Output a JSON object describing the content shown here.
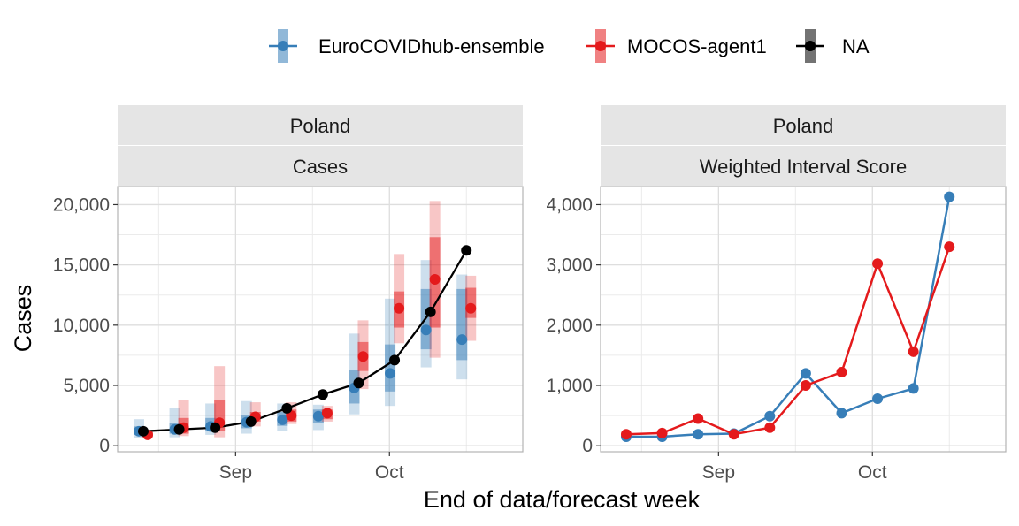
{
  "legend": [
    {
      "label": "EuroCOVIDhub-ensemble",
      "color": "#377eb8"
    },
    {
      "label": "MOCOS-agent1",
      "color": "#e41a1c"
    },
    {
      "label": "NA",
      "color": "#000000"
    }
  ],
  "xlabel": "End of data/forecast week",
  "chart_data": [
    {
      "type": "line",
      "facet": {
        "location": "Poland",
        "target": "Cases"
      },
      "ylabel": "Cases",
      "xlabel": "End of data/forecast week",
      "x_ticks": [
        "Sep",
        "Oct"
      ],
      "x_tick_dates": [
        "2021-09-01",
        "2021-10-01"
      ],
      "x_range": [
        "2021-08-09",
        "2021-10-27"
      ],
      "y_ticks": [
        0,
        5000,
        10000,
        15000,
        20000
      ],
      "y_tick_labels": [
        "0",
        "5,000",
        "10,000",
        "15,000",
        "20,000"
      ],
      "ylim": [
        -500,
        21500
      ],
      "grid": true,
      "truth": {
        "name": "NA",
        "color": "#000000",
        "dates": [
          "2021-08-14",
          "2021-08-21",
          "2021-08-28",
          "2021-09-04",
          "2021-09-11",
          "2021-09-18",
          "2021-09-25",
          "2021-10-02",
          "2021-10-09",
          "2021-10-16"
        ],
        "values": [
          1200,
          1350,
          1500,
          2000,
          3100,
          4250,
          5200,
          7100,
          11100,
          16200
        ]
      },
      "forecasts": [
        {
          "name": "EuroCOVIDhub-ensemble",
          "color": "#377eb8",
          "dates": [
            "2021-08-14",
            "2021-08-21",
            "2021-08-28",
            "2021-09-04",
            "2021-09-11",
            "2021-09-18",
            "2021-09-25",
            "2021-10-02",
            "2021-10-09",
            "2021-10-16"
          ],
          "median": [
            1200,
            1350,
            1600,
            1950,
            2150,
            2450,
            4800,
            6000,
            9600,
            8800
          ],
          "lower_outer": [
            600,
            700,
            900,
            1000,
            1200,
            1300,
            2600,
            3300,
            6500,
            5500
          ],
          "upper_outer": [
            2200,
            3100,
            3500,
            3700,
            3500,
            3400,
            9300,
            12200,
            15400,
            14200
          ],
          "lower_inner": [
            900,
            1000,
            1200,
            1450,
            1650,
            1900,
            3500,
            4500,
            8000,
            7100
          ],
          "upper_inner": [
            1600,
            1900,
            2300,
            2500,
            2800,
            3000,
            6300,
            8400,
            13000,
            13000
          ]
        },
        {
          "name": "MOCOS-agent1",
          "color": "#e41a1c",
          "dates": [
            "2021-08-14",
            "2021-08-21",
            "2021-08-28",
            "2021-09-04",
            "2021-09-11",
            "2021-09-18",
            "2021-09-25",
            "2021-10-02",
            "2021-10-09",
            "2021-10-16"
          ],
          "median": [
            900,
            1500,
            1900,
            2400,
            2500,
            2700,
            7400,
            11400,
            13800,
            11400
          ],
          "lower_outer": [
            700,
            800,
            700,
            1600,
            1800,
            2000,
            4700,
            8500,
            7300,
            8700
          ],
          "upper_outer": [
            1300,
            3800,
            6600,
            3600,
            3600,
            3300,
            10400,
            15900,
            20300,
            14100
          ],
          "lower_inner": [
            800,
            1000,
            1200,
            2000,
            2000,
            2200,
            6200,
            9800,
            9800,
            10600
          ],
          "upper_inner": [
            1100,
            2300,
            3800,
            2800,
            3000,
            3000,
            8600,
            12800,
            17300,
            13100
          ]
        }
      ]
    },
    {
      "type": "line",
      "facet": {
        "location": "Poland",
        "target": "Weighted Interval Score"
      },
      "x_ticks": [
        "Sep",
        "Oct"
      ],
      "x_tick_dates": [
        "2021-09-01",
        "2021-10-01"
      ],
      "x_range": [
        "2021-08-09",
        "2021-10-27"
      ],
      "y_ticks": [
        0,
        1000,
        2000,
        3000,
        4000
      ],
      "y_tick_labels": [
        "0",
        "1,000",
        "2,000",
        "3,000",
        "4,000"
      ],
      "ylim": [
        -100,
        4300
      ],
      "grid": true,
      "series": [
        {
          "name": "EuroCOVIDhub-ensemble",
          "color": "#377eb8",
          "dates": [
            "2021-08-14",
            "2021-08-21",
            "2021-08-28",
            "2021-09-04",
            "2021-09-11",
            "2021-09-18",
            "2021-09-25",
            "2021-10-02",
            "2021-10-09",
            "2021-10-16"
          ],
          "values": [
            150,
            150,
            190,
            200,
            490,
            1200,
            540,
            780,
            950,
            4130
          ]
        },
        {
          "name": "MOCOS-agent1",
          "color": "#e41a1c",
          "dates": [
            "2021-08-14",
            "2021-08-21",
            "2021-08-28",
            "2021-09-04",
            "2021-09-11",
            "2021-09-18",
            "2021-09-25",
            "2021-10-02",
            "2021-10-09",
            "2021-10-16"
          ],
          "values": [
            190,
            210,
            450,
            190,
            300,
            1000,
            1220,
            3020,
            1560,
            3300
          ]
        }
      ]
    }
  ]
}
